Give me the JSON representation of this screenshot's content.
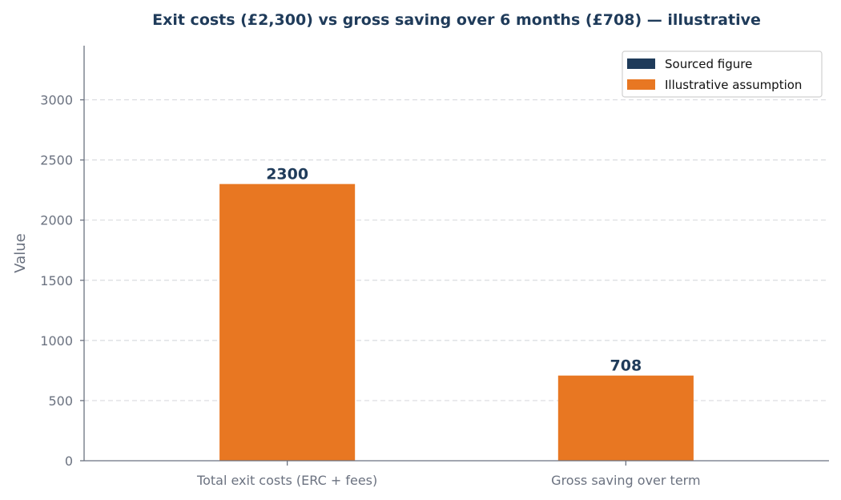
{
  "chart_data": {
    "type": "bar",
    "title": "Exit costs (£2,300) vs gross saving over 6 months (£708) — illustrative",
    "xlabel": "",
    "ylabel": "Value",
    "categories": [
      "Total exit costs (ERC + fees)",
      "Gross saving over term"
    ],
    "values": [
      2300,
      708
    ],
    "data_labels": [
      "2300",
      "708"
    ],
    "bar_series": [
      "Illustrative assumption",
      "Illustrative assumption"
    ],
    "ylim": [
      0,
      3450
    ],
    "yticks": [
      0,
      500,
      1000,
      1500,
      2000,
      2500,
      3000
    ],
    "grid": "horizontal-dashed",
    "legend_placement": "top-right",
    "legend": [
      {
        "name": "Sourced figure",
        "color": "#1f3b5a"
      },
      {
        "name": "Illustrative assumption",
        "color": "#e87722"
      }
    ]
  }
}
